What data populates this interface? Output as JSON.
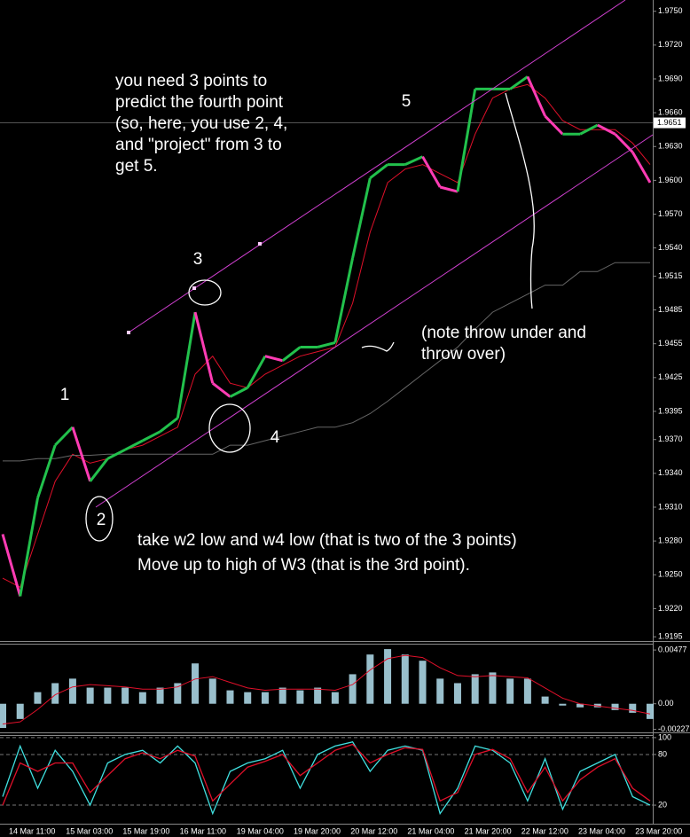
{
  "chart_data": [
    {
      "type": "line",
      "ylim": [
        1.9192,
        1.976
      ],
      "yticks": [
        {
          "value": 1.975,
          "label": "1.9750"
        },
        {
          "value": 1.972,
          "label": "1.9720"
        },
        {
          "value": 1.969,
          "label": "1.9690"
        },
        {
          "value": 1.966,
          "label": "1.9660"
        },
        {
          "value": 1.963,
          "label": "1.9630"
        },
        {
          "value": 1.96,
          "label": "1.9600"
        },
        {
          "value": 1.957,
          "label": "1.9570"
        },
        {
          "value": 1.954,
          "label": "1.9540"
        },
        {
          "value": 1.9515,
          "label": "1.9515"
        },
        {
          "value": 1.9485,
          "label": "1.9485"
        },
        {
          "value": 1.9455,
          "label": "1.9455"
        },
        {
          "value": 1.9425,
          "label": "1.9425"
        },
        {
          "value": 1.9395,
          "label": "1.9395"
        },
        {
          "value": 1.937,
          "label": "1.9370"
        },
        {
          "value": 1.934,
          "label": "1.9340"
        },
        {
          "value": 1.931,
          "label": "1.9310"
        },
        {
          "value": 1.928,
          "label": "1.9280"
        },
        {
          "value": 1.925,
          "label": "1.9250"
        },
        {
          "value": 1.922,
          "label": "1.9220"
        },
        {
          "value": 1.9195,
          "label": "1.9195"
        }
      ],
      "current_price": {
        "value": 1.9651,
        "label": "1.9651"
      },
      "x_tick_labels": [
        "14 Mar 11:00",
        "15 Mar 03:00",
        "15 Mar 19:00",
        "16 Mar 11:00",
        "19 Mar 04:00",
        "19 Mar 20:00",
        "20 Mar 12:00",
        "21 Mar 04:00",
        "21 Mar 20:00",
        "22 Mar 12:00",
        "23 Mar 04:00",
        "23 Mar 20:00"
      ],
      "up_color": "#22c14c",
      "down_color": "#ff3cb4",
      "series": [
        {
          "color": "#22c14c",
          "values": [
            1.9286,
            1.9231,
            1.9318,
            1.9365,
            1.9381,
            1.9333,
            1.9353,
            1.9361,
            1.9369,
            1.9377,
            1.9389,
            1.9483,
            1.942,
            1.9408,
            1.9416,
            1.9444,
            1.944,
            1.9452,
            1.9452,
            1.9456,
            1.9531,
            1.9602,
            1.9614,
            1.9614,
            1.9621,
            1.9594,
            1.959,
            1.9681,
            1.9681,
            1.9681,
            1.9692,
            1.9657,
            1.9641,
            1.9641,
            1.9649,
            1.9641,
            1.9625,
            1.9598
          ]
        },
        {
          "color": "#e0102a",
          "values": [
            1.9247,
            1.9239,
            1.9286,
            1.9333,
            1.9357,
            1.9349,
            1.9353,
            1.9361,
            1.9365,
            1.9373,
            1.9381,
            1.9428,
            1.9444,
            1.942,
            1.9416,
            1.9428,
            1.9436,
            1.9444,
            1.9448,
            1.9452,
            1.9491,
            1.9554,
            1.9598,
            1.961,
            1.9614,
            1.9606,
            1.9598,
            1.9641,
            1.9673,
            1.9681,
            1.9685,
            1.9673,
            1.9653,
            1.9645,
            1.9645,
            1.9645,
            1.9633,
            1.9614
          ]
        },
        {
          "color": "#666666",
          "values": [
            1.9351,
            1.9351,
            1.9353,
            1.9353,
            1.9356,
            1.9356,
            1.9357,
            1.9357,
            1.9357,
            1.9357,
            1.9357,
            1.9357,
            1.9357,
            1.9365,
            1.9365,
            1.9369,
            1.9373,
            1.9377,
            1.9381,
            1.9381,
            1.9385,
            1.9393,
            1.9404,
            1.9416,
            1.9428,
            1.944,
            1.9452,
            1.9468,
            1.9483,
            1.9491,
            1.9499,
            1.9507,
            1.9507,
            1.9519,
            1.9519,
            1.9527,
            1.9527,
            1.9527
          ]
        }
      ],
      "wave_labels": [
        "1",
        "2",
        "3",
        "4",
        "5"
      ],
      "annotations": [
        [
          "you need 3 points to",
          "predict the fourth point",
          "(so, here, you use 2, 4,",
          "and \"project\" from 3 to",
          "get 5."
        ],
        [
          "(note throw under and",
          "throw over)"
        ],
        [
          "take w2 low and w4 low (that is two of the 3 points)",
          "Move up to high of W3 (that is the 3rd point)."
        ]
      ]
    },
    {
      "type": "macd",
      "ylim": [
        -0.00254,
        0.00525
      ],
      "yticks": [
        0.00477,
        {
          "value": 0,
          "label": "0.00"
        },
        -0.00227
      ],
      "series": [
        {
          "color": "#bfefff",
          "values": [
            -0.00215,
            -0.00135,
            0.00103,
            0.00183,
            0.00223,
            0.00143,
            0.00143,
            0.00143,
            0.00103,
            0.00143,
            0.00183,
            0.00358,
            0.00223,
            0.00119,
            0.00103,
            0.00103,
            0.00143,
            0.00119,
            0.00143,
            0.00103,
            0.00262,
            0.00437,
            0.00485,
            0.00437,
            0.00382,
            0.00223,
            0.00183,
            0.00262,
            0.00278,
            0.00223,
            0.00223,
            0.00064,
            -0.00016,
            -0.00032,
            -0.00032,
            -0.00056,
            -0.0008,
            -0.00135
          ]
        },
        {
          "color": "#e0102a",
          "values": [
            -0.0018,
            -0.0016,
            -0.0005,
            0.0008,
            0.0015,
            0.0017,
            0.0016,
            0.0015,
            0.0013,
            0.0013,
            0.0015,
            0.0022,
            0.0024,
            0.0019,
            0.0014,
            0.0012,
            0.0013,
            0.0013,
            0.0013,
            0.0012,
            0.0017,
            0.003,
            0.004,
            0.0043,
            0.0041,
            0.0032,
            0.0025,
            0.0024,
            0.0025,
            0.0024,
            0.0023,
            0.0014,
            0.0005,
            0,
            -0.0002,
            -0.0004,
            -0.0006,
            -0.0009
          ]
        }
      ]
    },
    {
      "type": "stochastic",
      "ylim": [
        -2,
        102
      ],
      "yticks": [
        100,
        80,
        20
      ],
      "series": [
        {
          "color": "#40e0e0",
          "values": [
            30,
            90,
            40,
            85,
            60,
            20,
            70,
            80,
            85,
            70,
            90,
            70,
            10,
            60,
            70,
            75,
            85,
            40,
            80,
            90,
            95,
            60,
            85,
            90,
            85,
            10,
            40,
            90,
            85,
            70,
            25,
            75,
            15,
            60,
            70,
            80,
            30,
            20
          ]
        },
        {
          "color": "#e0102a",
          "values": [
            20,
            70,
            60,
            70,
            70,
            35,
            55,
            75,
            82,
            75,
            85,
            78,
            25,
            45,
            65,
            72,
            80,
            55,
            70,
            85,
            92,
            70,
            80,
            88,
            86,
            25,
            35,
            80,
            86,
            75,
            35,
            65,
            25,
            50,
            65,
            75,
            40,
            25
          ]
        }
      ]
    }
  ]
}
